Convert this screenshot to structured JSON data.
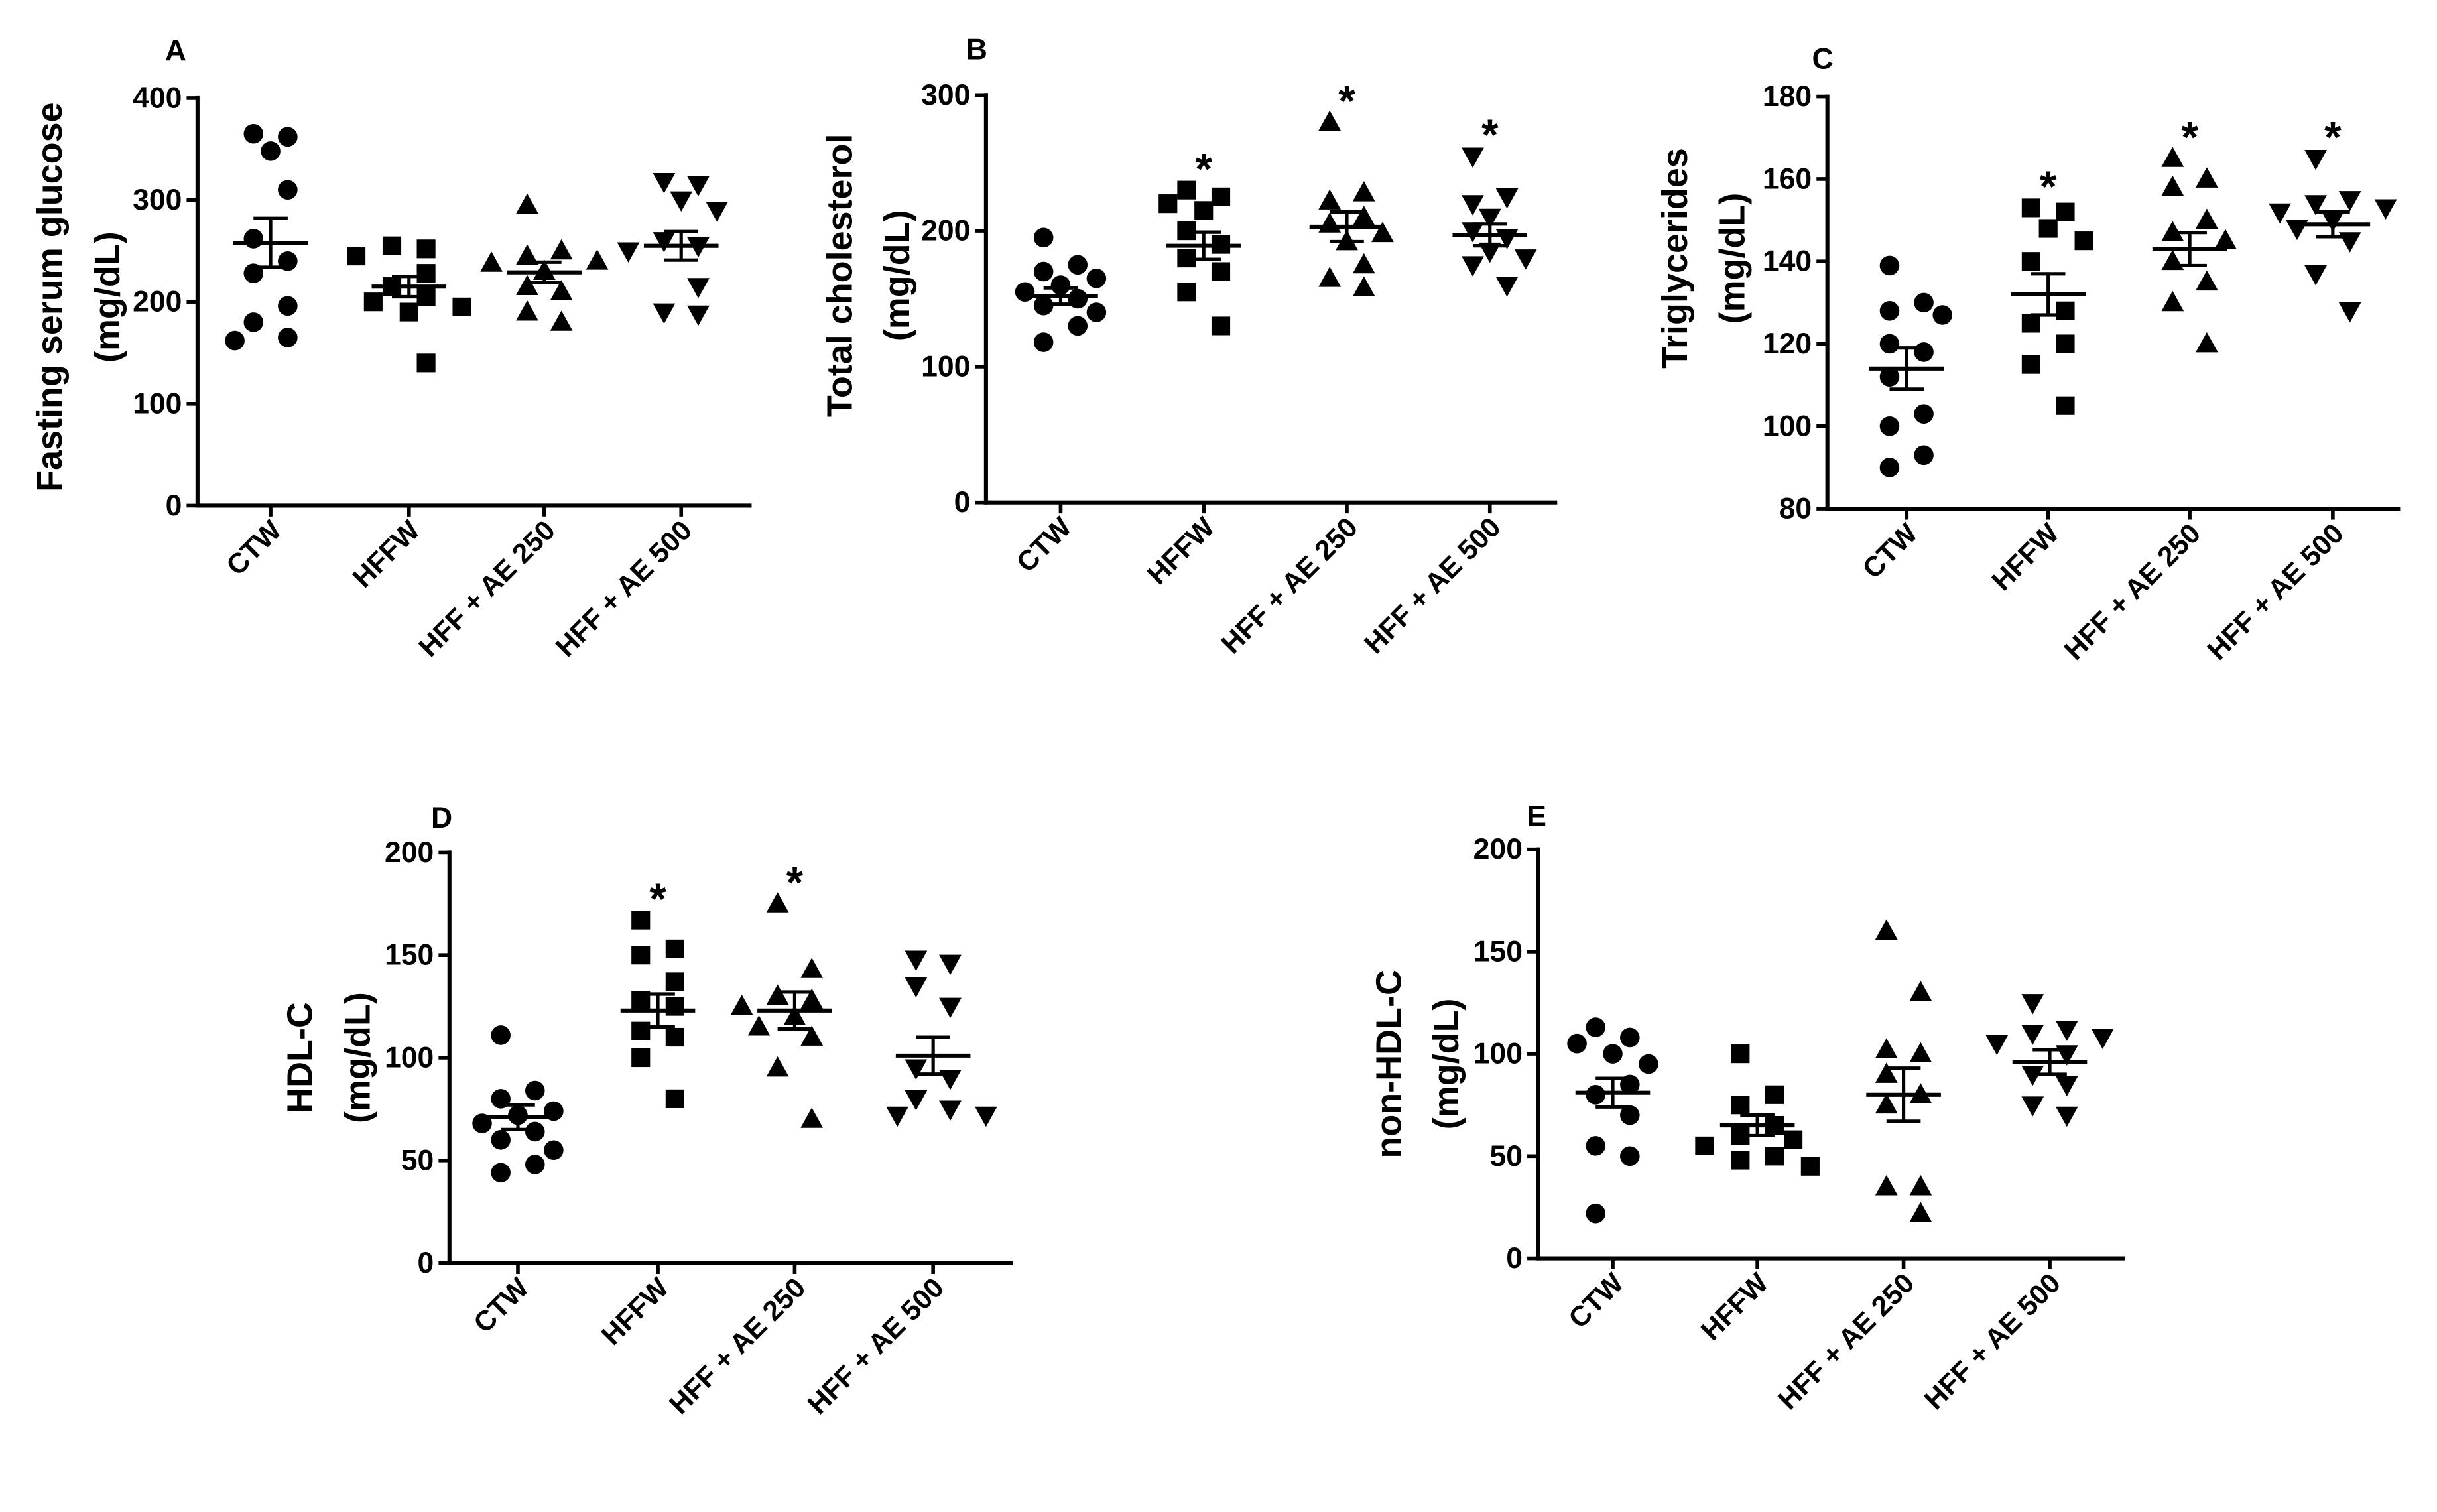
{
  "figure": {
    "sig_marker": "*",
    "marker_color": "#000000"
  },
  "chart_data": [
    {
      "type": "scatter",
      "panel": "A",
      "ylabel": "Fasting serum glucose",
      "yunit": "(mg/dL)",
      "ylim": [
        0,
        400
      ],
      "yticks": [
        0,
        100,
        200,
        300,
        400
      ],
      "categories": [
        "CTW",
        "HFFW",
        "HFF + AE 250",
        "HFF + AE 500"
      ],
      "series": [
        {
          "name": "CTW",
          "marker": "circle",
          "values": [
            365,
            362,
            348,
            310,
            262,
            240,
            228,
            196,
            180,
            165,
            162
          ],
          "mean": 258,
          "sem": 24,
          "significant": false
        },
        {
          "name": "HFFW",
          "marker": "square",
          "values": [
            255,
            252,
            245,
            228,
            215,
            205,
            200,
            195,
            190,
            140
          ],
          "mean": 215,
          "sem": 10,
          "significant": false
        },
        {
          "name": "HFF + AE 250",
          "marker": "triangle-up",
          "values": [
            295,
            250,
            245,
            240,
            238,
            230,
            215,
            210,
            190,
            180
          ],
          "mean": 229,
          "sem": 10,
          "significant": false
        },
        {
          "name": "HFF + AE 500",
          "marker": "triangle-down",
          "values": [
            318,
            315,
            300,
            290,
            260,
            255,
            250,
            215,
            190,
            188
          ],
          "mean": 255,
          "sem": 14,
          "significant": false
        }
      ]
    },
    {
      "type": "scatter",
      "panel": "B",
      "ylabel": "Total cholesterol",
      "yunit": "(mg/dL)",
      "ylim": [
        0,
        300
      ],
      "yticks": [
        0,
        100,
        200,
        300
      ],
      "categories": [
        "CTW",
        "HFFW",
        "HFF + AE 250",
        "HFF + AE 500"
      ],
      "series": [
        {
          "name": "CTW",
          "marker": "circle",
          "values": [
            195,
            175,
            170,
            165,
            160,
            155,
            150,
            145,
            140,
            130,
            118
          ],
          "mean": 152,
          "sem": 6,
          "significant": false
        },
        {
          "name": "HFFW",
          "marker": "square",
          "values": [
            230,
            225,
            220,
            215,
            200,
            190,
            180,
            170,
            155,
            130
          ],
          "mean": 189,
          "sem": 10,
          "significant": true
        },
        {
          "name": "HFF + AE 250",
          "marker": "triangle-up",
          "values": [
            280,
            228,
            222,
            210,
            205,
            198,
            192,
            175,
            165,
            158
          ],
          "mean": 203,
          "sem": 11,
          "significant": true
        },
        {
          "name": "HFF + AE 500",
          "marker": "triangle-down",
          "values": [
            255,
            225,
            220,
            210,
            200,
            195,
            185,
            180,
            175,
            160
          ],
          "mean": 197,
          "sem": 8,
          "significant": true
        }
      ]
    },
    {
      "type": "scatter",
      "panel": "C",
      "ylabel": "Triglycerides",
      "yunit": "(mg/dL)",
      "ylim": [
        80,
        180
      ],
      "yticks": [
        80,
        100,
        120,
        140,
        160,
        180
      ],
      "categories": [
        "CTW",
        "HFFW",
        "HFF + AE 250",
        "HFF + AE 500"
      ],
      "series": [
        {
          "name": "CTW",
          "marker": "circle",
          "values": [
            139,
            130,
            128,
            127,
            120,
            118,
            112,
            103,
            100,
            93,
            90
          ],
          "mean": 114,
          "sem": 5,
          "significant": false
        },
        {
          "name": "HFFW",
          "marker": "square",
          "values": [
            153,
            152,
            148,
            145,
            140,
            128,
            125,
            120,
            115,
            105
          ],
          "mean": 132,
          "sem": 5,
          "significant": true
        },
        {
          "name": "HFF + AE 250",
          "marker": "triangle-up",
          "values": [
            165,
            160,
            158,
            150,
            147,
            145,
            140,
            135,
            130,
            120
          ],
          "mean": 143,
          "sem": 4,
          "significant": true
        },
        {
          "name": "HFF + AE 500",
          "marker": "triangle-down",
          "values": [
            165,
            155,
            154,
            153,
            152,
            150,
            148,
            145,
            137,
            128
          ],
          "mean": 149,
          "sem": 3,
          "significant": true
        }
      ]
    },
    {
      "type": "scatter",
      "panel": "D",
      "ylabel": "HDL-C",
      "yunit": "(mg/dL)",
      "ylim": [
        0,
        200
      ],
      "yticks": [
        0,
        50,
        100,
        150,
        200
      ],
      "categories": [
        "CTW",
        "HFFW",
        "HFF + AE 250",
        "HFF + AE 500"
      ],
      "series": [
        {
          "name": "CTW",
          "marker": "circle",
          "values": [
            111,
            84,
            80,
            74,
            72,
            68,
            64,
            60,
            55,
            48,
            44
          ],
          "mean": 71,
          "sem": 6,
          "significant": false
        },
        {
          "name": "HFFW",
          "marker": "square",
          "values": [
            167,
            153,
            150,
            137,
            128,
            125,
            113,
            110,
            100,
            80
          ],
          "mean": 123,
          "sem": 8,
          "significant": true
        },
        {
          "name": "HFF + AE 250",
          "marker": "triangle-up",
          "values": [
            175,
            143,
            130,
            128,
            125,
            120,
            115,
            110,
            95,
            70
          ],
          "mean": 123,
          "sem": 9,
          "significant": true
        },
        {
          "name": "HFF + AE 500",
          "marker": "triangle-down",
          "values": [
            148,
            146,
            135,
            125,
            95,
            90,
            80,
            75,
            72,
            72
          ],
          "mean": 101,
          "sem": 9,
          "significant": false
        }
      ]
    },
    {
      "type": "scatter",
      "panel": "E",
      "ylabel": "non-HDL-C",
      "yunit": "(mg/dL)",
      "ylim": [
        0,
        200
      ],
      "yticks": [
        0,
        50,
        100,
        150,
        200
      ],
      "categories": [
        "CTW",
        "HFFW",
        "HFF + AE 250",
        "HFF + AE 500"
      ],
      "series": [
        {
          "name": "CTW",
          "marker": "circle",
          "values": [
            113,
            108,
            105,
            100,
            95,
            85,
            80,
            70,
            55,
            50,
            22
          ],
          "mean": 81,
          "sem": 7,
          "significant": false
        },
        {
          "name": "HFFW",
          "marker": "square",
          "values": [
            100,
            80,
            75,
            65,
            60,
            58,
            55,
            50,
            48,
            45
          ],
          "mean": 65,
          "sem": 5,
          "significant": false
        },
        {
          "name": "HFF + AE 250",
          "marker": "triangle-up",
          "values": [
            160,
            130,
            102,
            100,
            90,
            80,
            75,
            35,
            35,
            22
          ],
          "mean": 80,
          "sem": 13,
          "significant": false
        },
        {
          "name": "HFF + AE 500",
          "marker": "triangle-down",
          "values": [
            125,
            112,
            110,
            108,
            105,
            100,
            90,
            85,
            75,
            70
          ],
          "mean": 96,
          "sem": 6,
          "significant": false
        }
      ]
    }
  ]
}
